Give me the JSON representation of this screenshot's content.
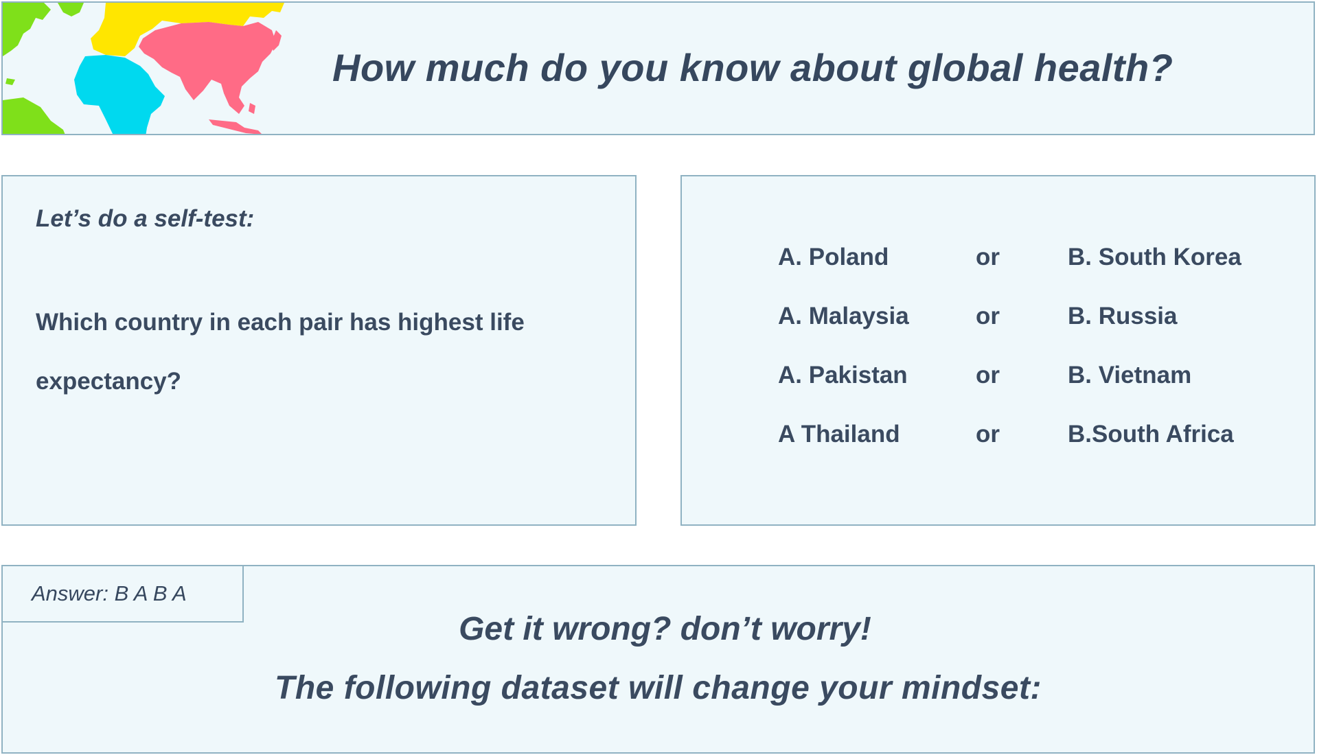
{
  "header": {
    "title": "How much do you know about global health?"
  },
  "question_panel": {
    "label": "Let’s do a self-test:",
    "question": "Which country in each pair has highest life expectancy?"
  },
  "pairs": [
    {
      "a": "A. Poland",
      "connector": "or",
      "b": "B. South Korea"
    },
    {
      "a": "A. Malaysia",
      "connector": "or",
      "b": "B. Russia"
    },
    {
      "a": "A. Pakistan",
      "connector": "or",
      "b": "B. Vietnam"
    },
    {
      "a": "A Thailand",
      "connector": "or",
      "b": "B.South Africa"
    }
  ],
  "answer": {
    "text": "Answer: B A B A"
  },
  "footer": {
    "line1": "Get it wrong? don’t worry!",
    "line2": "The following dataset will change your mindset:"
  },
  "colors": {
    "panel_background": "#eff8fb",
    "panel_border": "#8fb2c2",
    "text": "#3a4a60",
    "map_americas": "#7fe01a",
    "map_europe": "#ffe600",
    "map_africa": "#00d9ef",
    "map_asia": "#ff6b86"
  }
}
